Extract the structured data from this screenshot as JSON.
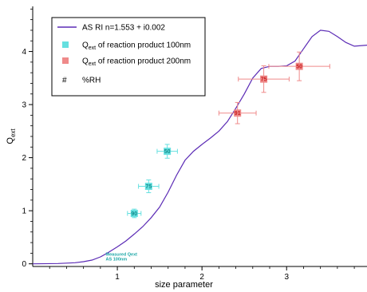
{
  "chart_data": {
    "type": "line",
    "xlabel": "size parameter",
    "ylabel": "Q",
    "ylabel_sub": "ext",
    "xlim": [
      0.0,
      3.95
    ],
    "ylim": [
      -0.05,
      4.85
    ],
    "x_ticks": [
      1,
      2,
      3
    ],
    "y_ticks": [
      0,
      1,
      2,
      3,
      4
    ],
    "x_tick_labels": [
      "1",
      "2",
      "3"
    ],
    "y_tick_labels": [
      "0",
      "1",
      "2",
      "3",
      "4"
    ],
    "grid": false,
    "legend_position": "top-left",
    "legend": [
      {
        "kind": "line",
        "text": "AS RI n=1.553 + i0.002",
        "color": "#5b2bb5"
      },
      {
        "kind": "square",
        "pre": "Q",
        "sub": "ext",
        "text": " of reaction product 100nm",
        "color": "#66e0e0"
      },
      {
        "kind": "square",
        "pre": "Q",
        "sub": "ext",
        "text": " of reaction product 200nm",
        "color": "#ef8a8a"
      },
      {
        "kind": "hash",
        "symbol": "#",
        "text": "%RH"
      }
    ],
    "line_series": {
      "name": "AS RI n=1.553 + i0.002",
      "color": "#5b2bb5",
      "points": [
        [
          0.0,
          0.0
        ],
        [
          0.3,
          0.005
        ],
        [
          0.5,
          0.02
        ],
        [
          0.6,
          0.04
        ],
        [
          0.7,
          0.07
        ],
        [
          0.8,
          0.13
        ],
        [
          0.9,
          0.22
        ],
        [
          1.0,
          0.32
        ],
        [
          1.1,
          0.43
        ],
        [
          1.2,
          0.56
        ],
        [
          1.3,
          0.7
        ],
        [
          1.4,
          0.87
        ],
        [
          1.5,
          1.07
        ],
        [
          1.6,
          1.35
        ],
        [
          1.7,
          1.67
        ],
        [
          1.8,
          1.95
        ],
        [
          1.9,
          2.12
        ],
        [
          2.0,
          2.25
        ],
        [
          2.1,
          2.37
        ],
        [
          2.2,
          2.5
        ],
        [
          2.3,
          2.68
        ],
        [
          2.4,
          2.93
        ],
        [
          2.5,
          3.2
        ],
        [
          2.6,
          3.5
        ],
        [
          2.7,
          3.68
        ],
        [
          2.8,
          3.72
        ],
        [
          2.9,
          3.72
        ],
        [
          3.0,
          3.73
        ],
        [
          3.1,
          3.82
        ],
        [
          3.2,
          4.05
        ],
        [
          3.3,
          4.28
        ],
        [
          3.4,
          4.4
        ],
        [
          3.5,
          4.38
        ],
        [
          3.6,
          4.28
        ],
        [
          3.7,
          4.17
        ],
        [
          3.8,
          4.1
        ],
        [
          3.95,
          4.12
        ]
      ]
    },
    "measured_series": [
      {
        "name": "100nm",
        "color": "#66e0e0",
        "label_color": "#128c8c",
        "points": [
          {
            "x": 1.59,
            "y": 2.12,
            "xerr": 0.12,
            "yerr": 0.13,
            "label": "50"
          },
          {
            "x": 1.37,
            "y": 1.46,
            "xerr": 0.12,
            "yerr": 0.12,
            "label": "75"
          },
          {
            "x": 1.2,
            "y": 0.95,
            "xerr": 0.08,
            "yerr": 0.08,
            "label": "90"
          }
        ]
      },
      {
        "name": "200nm",
        "color": "#ef8a8a",
        "label_color": "#c81e1e",
        "points": [
          {
            "x": 3.15,
            "y": 3.72,
            "xerr": 0.36,
            "yerr": 0.27,
            "label": "50"
          },
          {
            "x": 2.73,
            "y": 3.48,
            "xerr": 0.3,
            "yerr": 0.25,
            "label": "75"
          },
          {
            "x": 2.42,
            "y": 2.84,
            "xerr": 0.22,
            "yerr": 0.2,
            "label": "91"
          }
        ]
      }
    ],
    "annotation": {
      "lines": [
        "Measured Qext",
        "AS 100nm"
      ],
      "x": 0.75,
      "y": 0.05
    }
  }
}
